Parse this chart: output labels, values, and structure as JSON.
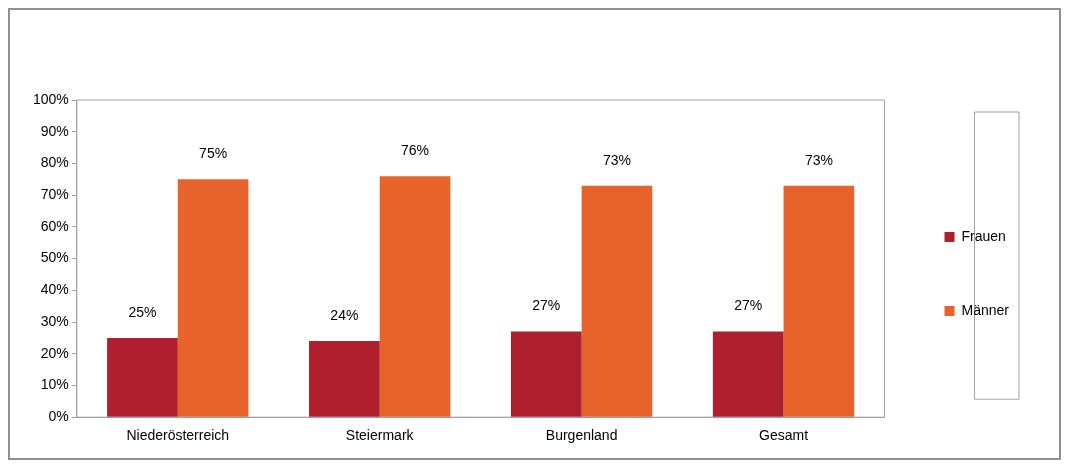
{
  "chart_data": {
    "type": "bar",
    "categories": [
      "Niederösterreich",
      "Steiermark",
      "Burgenland",
      "Gesamt"
    ],
    "series": [
      {
        "name": "Frauen",
        "color": "#b01f2e",
        "values": [
          25,
          24,
          27,
          27
        ],
        "value_labels": [
          "25%",
          "24%",
          "27%",
          "27%"
        ]
      },
      {
        "name": "Männer",
        "color": "#e8622c",
        "values": [
          75,
          76,
          73,
          73
        ],
        "value_labels": [
          "75%",
          "76%",
          "73%",
          "73%"
        ]
      }
    ],
    "ylim": [
      0,
      100
    ],
    "yticks": [
      {
        "value": 0,
        "label": "0%"
      },
      {
        "value": 10,
        "label": "10%"
      },
      {
        "value": 20,
        "label": "20%"
      },
      {
        "value": 30,
        "label": "30%"
      },
      {
        "value": 40,
        "label": "40%"
      },
      {
        "value": 50,
        "label": "50%"
      },
      {
        "value": 60,
        "label": "60%"
      },
      {
        "value": 70,
        "label": "70%"
      },
      {
        "value": 80,
        "label": "80%"
      },
      {
        "value": 90,
        "label": "90%"
      },
      {
        "value": 100,
        "label": "100%"
      }
    ],
    "grid": false,
    "legend": "right"
  }
}
